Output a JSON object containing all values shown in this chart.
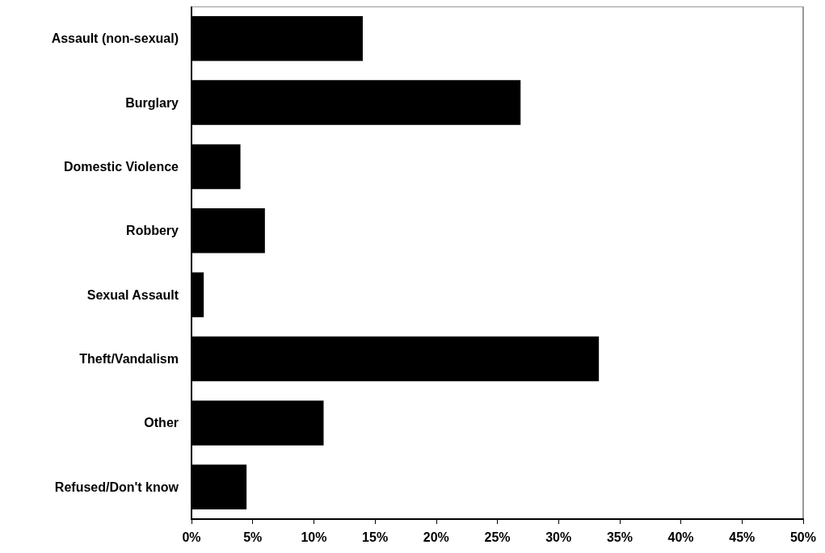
{
  "chart_data": {
    "type": "bar",
    "orientation": "horizontal",
    "categories": [
      "Assault (non-sexual)",
      "Burglary",
      "Domestic Violence",
      "Robbery",
      "Sexual Assault",
      "Theft/Vandalism",
      "Other",
      "Refused/Don't know"
    ],
    "values": [
      14,
      26.9,
      4,
      6,
      1,
      33.3,
      10.8,
      4.5
    ],
    "color": "#000000",
    "xlim": [
      0,
      50
    ],
    "xticks": [
      {
        "value": 0,
        "label": "0%"
      },
      {
        "value": 5,
        "label": "5%"
      },
      {
        "value": 10,
        "label": "10%"
      },
      {
        "value": 15,
        "label": "15%"
      },
      {
        "value": 20,
        "label": "20%"
      },
      {
        "value": 25,
        "label": "25%"
      },
      {
        "value": 30,
        "label": "30%"
      },
      {
        "value": 35,
        "label": "35%"
      },
      {
        "value": 40,
        "label": "40%"
      },
      {
        "value": 45,
        "label": "45%"
      },
      {
        "value": 50,
        "label": "50%"
      }
    ],
    "grid": false
  }
}
